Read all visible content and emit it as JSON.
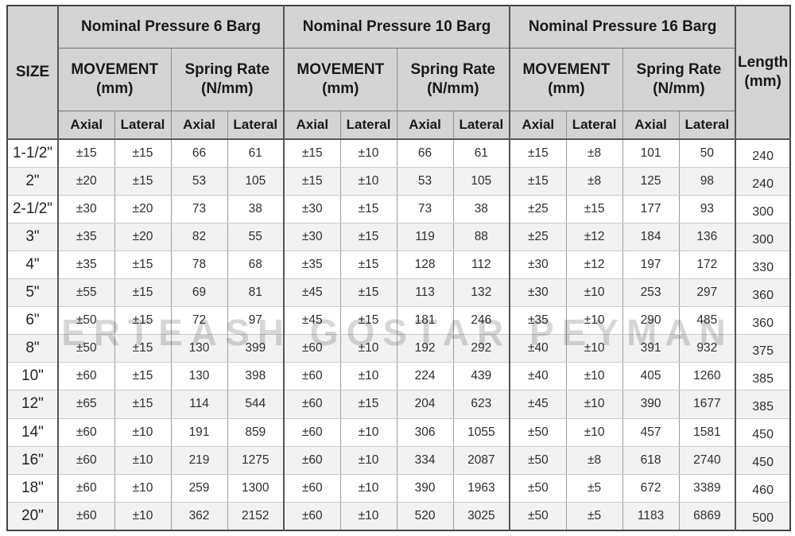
{
  "table": {
    "size_header": "SIZE",
    "length_header": "Length\n(mm)",
    "groups": [
      {
        "title": "Nominal Pressure 6 Barg",
        "movement": "MOVEMENT\n(mm)",
        "spring": "Spring Rate\n(N/mm)",
        "axial": "Axial",
        "lateral": "Lateral"
      },
      {
        "title": "Nominal Pressure 10 Barg",
        "movement": "MOVEMENT\n(mm)",
        "spring": "Spring Rate\n(N/mm)",
        "axial": "Axial",
        "lateral": "Lateral"
      },
      {
        "title": "Nominal Pressure 16 Barg",
        "movement": "MOVEMENT\n(mm)",
        "spring": "Spring Rate\n(N/mm)",
        "axial": "Axial",
        "lateral": "Lateral"
      }
    ],
    "rows": [
      {
        "size": "1-1/2\"",
        "cells": [
          "±15",
          "±15",
          "66",
          "61",
          "±15",
          "±10",
          "66",
          "61",
          "±15",
          "±8",
          "101",
          "50"
        ],
        "length": "240"
      },
      {
        "size": "2\"",
        "cells": [
          "±20",
          "±15",
          "53",
          "105",
          "±15",
          "±10",
          "53",
          "105",
          "±15",
          "±8",
          "125",
          "98"
        ],
        "length": "240"
      },
      {
        "size": "2-1/2\"",
        "cells": [
          "±30",
          "±20",
          "73",
          "38",
          "±30",
          "±15",
          "73",
          "38",
          "±25",
          "±15",
          "177",
          "93"
        ],
        "length": "300"
      },
      {
        "size": "3\"",
        "cells": [
          "±35",
          "±20",
          "82",
          "55",
          "±30",
          "±15",
          "119",
          "88",
          "±25",
          "±12",
          "184",
          "136"
        ],
        "length": "300"
      },
      {
        "size": "4\"",
        "cells": [
          "±35",
          "±15",
          "78",
          "68",
          "±35",
          "±15",
          "128",
          "112",
          "±30",
          "±12",
          "197",
          "172"
        ],
        "length": "330"
      },
      {
        "size": "5\"",
        "cells": [
          "±55",
          "±15",
          "69",
          "81",
          "±45",
          "±15",
          "113",
          "132",
          "±30",
          "±10",
          "253",
          "297"
        ],
        "length": "360"
      },
      {
        "size": "6\"",
        "cells": [
          "±50",
          "±15",
          "72",
          "97",
          "±45",
          "±15",
          "181",
          "246",
          "±35",
          "±10",
          "290",
          "485"
        ],
        "length": "360"
      },
      {
        "size": "8\"",
        "cells": [
          "±50",
          "±15",
          "130",
          "399",
          "±60",
          "±10",
          "192",
          "292",
          "±40",
          "±10",
          "391",
          "932"
        ],
        "length": "375"
      },
      {
        "size": "10\"",
        "cells": [
          "±60",
          "±15",
          "130",
          "398",
          "±60",
          "±10",
          "224",
          "439",
          "±40",
          "±10",
          "405",
          "1260"
        ],
        "length": "385"
      },
      {
        "size": "12\"",
        "cells": [
          "±65",
          "±15",
          "114",
          "544",
          "±60",
          "±15",
          "204",
          "623",
          "±45",
          "±10",
          "390",
          "1677"
        ],
        "length": "385"
      },
      {
        "size": "14\"",
        "cells": [
          "±60",
          "±10",
          "191",
          "859",
          "±60",
          "±10",
          "306",
          "1055",
          "±50",
          "±10",
          "457",
          "1581"
        ],
        "length": "450"
      },
      {
        "size": "16\"",
        "cells": [
          "±60",
          "±10",
          "219",
          "1275",
          "±60",
          "±10",
          "334",
          "2087",
          "±50",
          "±8",
          "618",
          "2740"
        ],
        "length": "450"
      },
      {
        "size": "18\"",
        "cells": [
          "±60",
          "±10",
          "259",
          "1300",
          "±60",
          "±10",
          "390",
          "1963",
          "±50",
          "±5",
          "672",
          "3389"
        ],
        "length": "460"
      },
      {
        "size": "20\"",
        "cells": [
          "±60",
          "±10",
          "362",
          "2152",
          "±60",
          "±10",
          "520",
          "3025",
          "±50",
          "±5",
          "1183",
          "6869"
        ],
        "length": "500"
      }
    ]
  },
  "watermark": "ERTEASH  GOSTAR  PEYMAN",
  "colors": {
    "header_bg": "#d4d4d4",
    "zebra_row_bg": "#f2f2f2",
    "outer_border": "#434343",
    "section_border": "#555555",
    "minor_border": "#9c9c9c",
    "row_border": "#c9c9c9",
    "watermark_gray": "#d7d7d7"
  }
}
